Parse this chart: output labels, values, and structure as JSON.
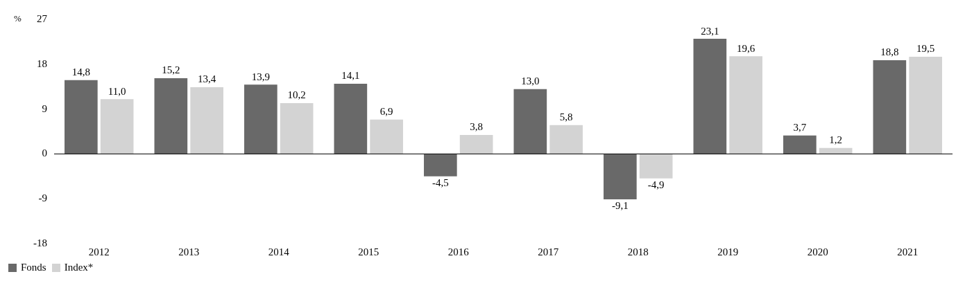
{
  "chart_data": {
    "type": "bar",
    "ylabel": "%",
    "categories": [
      "2012",
      "2013",
      "2014",
      "2015",
      "2016",
      "2017",
      "2018",
      "2019",
      "2020",
      "2021"
    ],
    "series": [
      {
        "name": "Fonds",
        "color": "#696969",
        "values": [
          14.8,
          15.2,
          13.9,
          14.1,
          -4.5,
          13.0,
          -9.1,
          23.1,
          3.7,
          18.8
        ],
        "value_labels": [
          "14,8",
          "15,2",
          "13,9",
          "14,1",
          "-4,5",
          "13,0",
          "-9,1",
          "23,1",
          "3,7",
          "18,8"
        ]
      },
      {
        "name": "Index*",
        "color": "#d3d3d3",
        "values": [
          11.0,
          13.4,
          10.2,
          6.9,
          3.8,
          5.8,
          -4.9,
          19.6,
          1.2,
          19.5
        ],
        "value_labels": [
          "11,0",
          "13,4",
          "10,2",
          "6,9",
          "3,8",
          "5,8",
          "-4,9",
          "19,6",
          "1,2",
          "19,5"
        ]
      }
    ],
    "ylim": [
      -18,
      27
    ],
    "yticks": [
      -18,
      -9,
      0,
      9,
      18,
      27
    ],
    "grid": false,
    "legend": "bottom",
    "ref_lines": [
      {
        "axis": "y",
        "value": 0,
        "color": "#000000"
      }
    ]
  }
}
